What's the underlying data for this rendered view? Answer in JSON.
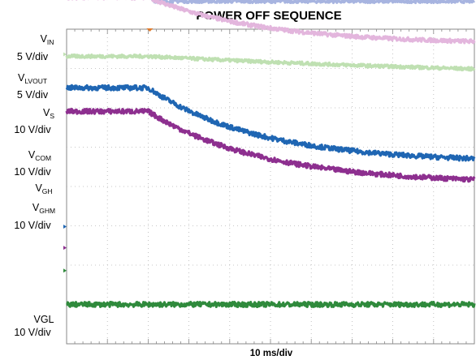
{
  "chart_data": {
    "type": "line",
    "title": "POWER OFF SEQUENCE",
    "xlabel": "10 ms/div",
    "x_divisions": 10,
    "y_divisions": 8,
    "x_unit": "ms",
    "x_range": [
      0,
      100
    ],
    "event_time": 20,
    "grid": true,
    "series": [
      {
        "key": "vin",
        "name": "V",
        "sub": "IN",
        "scale": "5 V/div",
        "color": "#b5521b",
        "initial_level": 7.05,
        "final_level": 6.05,
        "tau": 0,
        "fall_duration": 3.5,
        "noise": 0.02
      },
      {
        "key": "vlvout",
        "name": "V",
        "sub": "LVOUT",
        "scale": "5 V/div",
        "color": "#a7b4e0",
        "initial_level": 5.05,
        "final_level": 4.71,
        "tau": 0.5,
        "fall_duration": 0,
        "noise": 0.04
      },
      {
        "key": "vs",
        "name": "V",
        "sub": "S",
        "scale": "10 V/div",
        "color": "#e3b6dd",
        "initial_level": 4.81,
        "final_level": 3.62,
        "tau": 28,
        "fall_duration": 0,
        "noise": 0.05
      },
      {
        "key": "vcom",
        "name": "V",
        "sub": "COM",
        "scale": "10 V/div",
        "color": "#bfe0b2",
        "initial_level": 3.31,
        "final_level": 2.65,
        "tau": 120,
        "fall_duration": 0,
        "noise": 0.04
      },
      {
        "key": "vgh",
        "name": "V",
        "sub": "GH",
        "scale": "",
        "color": "#1f66b3",
        "initial_level": 2.51,
        "final_level": 0.61,
        "tau": 27,
        "fall_duration": 0,
        "noise": 0.06
      },
      {
        "key": "vghm",
        "name": "V",
        "sub": "GHM",
        "scale": "10 V/div",
        "color": "#8d2f8f",
        "initial_level": 1.91,
        "final_level": 0.07,
        "tau": 28,
        "fall_duration": 0,
        "noise": 0.06
      },
      {
        "key": "vgl",
        "name": "VGL",
        "sub": "",
        "scale": "10 V/div",
        "color": "#2f8a3c",
        "initial_level": -3.0,
        "final_level": -3.0,
        "tau": 0,
        "fall_duration": 0,
        "noise": 0.06
      }
    ]
  }
}
